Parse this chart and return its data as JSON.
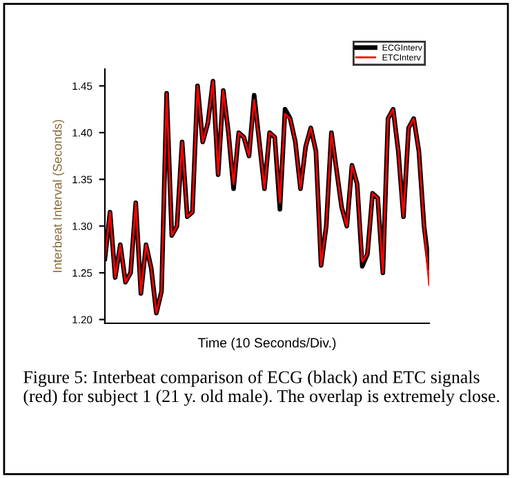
{
  "chart_data": {
    "type": "line",
    "xlabel": "Time (10 Seconds/Div.)",
    "ylabel": "Interbeat Interval (Seconds)",
    "categories": [
      null,
      null,
      null,
      null,
      null,
      null,
      null,
      null,
      null,
      null,
      null,
      null,
      null,
      null,
      null,
      null,
      null,
      null,
      null,
      null,
      null,
      null,
      null,
      null,
      null,
      null,
      null,
      null,
      null,
      null,
      null,
      null,
      null,
      null,
      null,
      null,
      null,
      null,
      null,
      null,
      null,
      null,
      null,
      null,
      null,
      null,
      null,
      null,
      null,
      null,
      null,
      null,
      null,
      null,
      null,
      null,
      null,
      null,
      null,
      null,
      null,
      null,
      null,
      null
    ],
    "series": [
      {
        "name": "ECGInterv",
        "color": "#000000",
        "values": [
          1.265,
          1.315,
          1.245,
          1.28,
          1.24,
          1.25,
          1.325,
          1.228,
          1.28,
          1.255,
          1.207,
          1.23,
          1.442,
          1.29,
          1.3,
          1.39,
          1.31,
          1.315,
          1.45,
          1.39,
          1.41,
          1.455,
          1.355,
          1.445,
          1.4,
          1.34,
          1.4,
          1.395,
          1.375,
          1.44,
          1.39,
          1.34,
          1.4,
          1.395,
          1.318,
          1.425,
          1.415,
          1.39,
          1.34,
          1.385,
          1.405,
          1.38,
          1.258,
          1.3,
          1.4,
          1.36,
          1.32,
          1.3,
          1.365,
          1.345,
          1.257,
          1.27,
          1.335,
          1.33,
          1.25,
          1.415,
          1.425,
          1.38,
          1.31,
          1.405,
          1.415,
          1.38,
          1.3,
          1.255
        ]
      },
      {
        "name": "ETCInterv",
        "color": "#ff0000",
        "values": [
          1.265,
          1.315,
          1.245,
          1.28,
          1.24,
          1.25,
          1.325,
          1.228,
          1.28,
          1.255,
          1.207,
          1.23,
          1.442,
          1.29,
          1.3,
          1.39,
          1.31,
          1.315,
          1.45,
          1.39,
          1.41,
          1.455,
          1.355,
          1.445,
          1.4,
          1.345,
          1.4,
          1.395,
          1.375,
          1.435,
          1.39,
          1.34,
          1.4,
          1.395,
          1.325,
          1.42,
          1.415,
          1.39,
          1.34,
          1.385,
          1.405,
          1.38,
          1.258,
          1.3,
          1.4,
          1.36,
          1.32,
          1.3,
          1.365,
          1.345,
          1.262,
          1.27,
          1.335,
          1.33,
          1.25,
          1.415,
          1.425,
          1.38,
          1.31,
          1.405,
          1.415,
          1.38,
          1.3,
          1.237
        ]
      }
    ],
    "ylim": [
      1.196,
      1.468
    ],
    "yticks": [
      {
        "value": 1.2,
        "label": "1.20"
      },
      1.25,
      {
        "value": 1.3,
        "label": "1.30"
      },
      1.35,
      {
        "value": 1.4,
        "label": "1.40"
      },
      1.45
    ],
    "legend": "top right",
    "grid": false,
    "marker": "none",
    "line_style": "solid",
    "annotations": [
      "Figure 5: Interbeat comparison of ECG (black) and ETC signals (red) for subject 1 (21 y. old male). The overlap is extremely close."
    ]
  }
}
